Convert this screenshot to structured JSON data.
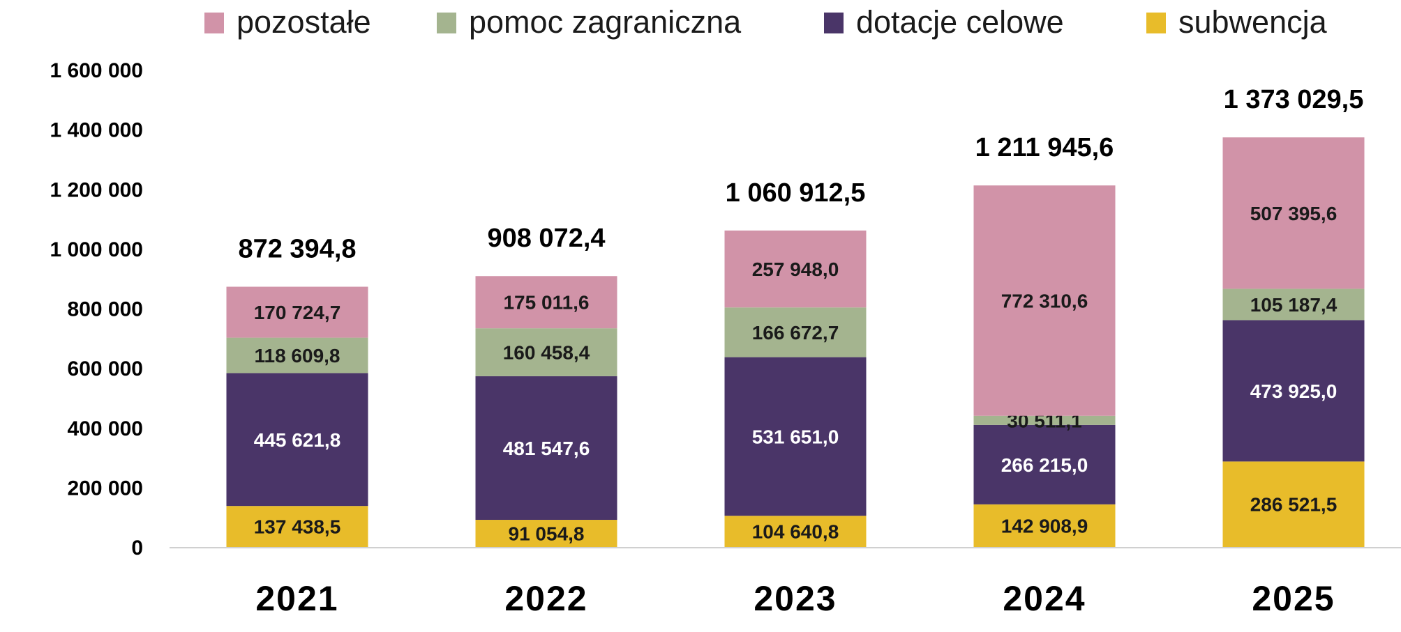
{
  "chart_data": {
    "type": "bar",
    "stacked": true,
    "title": "",
    "xlabel": "",
    "ylabel": "",
    "ylim": [
      0,
      1600000
    ],
    "yticks": [
      {
        "value": 0,
        "label": "0"
      },
      {
        "value": 200000,
        "label": "200  000"
      },
      {
        "value": 400000,
        "label": "400  000"
      },
      {
        "value": 600000,
        "label": "600  000"
      },
      {
        "value": 800000,
        "label": "800  000"
      },
      {
        "value": 1000000,
        "label": "1  000  000"
      },
      {
        "value": 1200000,
        "label": "1  200  000"
      },
      {
        "value": 1400000,
        "label": "1  400  000"
      },
      {
        "value": 1600000,
        "label": "1  600  000"
      }
    ],
    "grid": false,
    "legend_position": "top",
    "categories": [
      "2021",
      "2022",
      "2023",
      "2024",
      "2025"
    ],
    "totals": [
      {
        "value": 872394.8,
        "label": "872 394,8"
      },
      {
        "value": 908072.4,
        "label": "908 072,4"
      },
      {
        "value": 1060912.5,
        "label": "1 060 912,5"
      },
      {
        "value": 1211945.6,
        "label": "1 211 945,6"
      },
      {
        "value": 1373029.5,
        "label": "1 373 029,5"
      }
    ],
    "legend_order": [
      "pozostałe",
      "pomoc zagraniczna",
      "dotacje celowe",
      "subwencja"
    ],
    "series": [
      {
        "name": "subwencja",
        "color": "#E8BC2A",
        "label_color": "#1a1a1a",
        "values": [
          137438.5,
          91054.8,
          104640.8,
          142908.9,
          286521.5
        ],
        "labels": [
          "137 438,5",
          "91 054,8",
          "104 640,8",
          "142 908,9",
          "286 521,5"
        ]
      },
      {
        "name": "dotacje celowe",
        "color": "#4A3568",
        "label_color": "#ffffff",
        "values": [
          445621.8,
          481547.6,
          531651.0,
          266215.0,
          473925.0
        ],
        "labels": [
          "445 621,8",
          "481 547,6",
          "531 651,0",
          "266 215,0",
          "473 925,0"
        ]
      },
      {
        "name": "pomoc zagraniczna",
        "color": "#A4B48F",
        "label_color": "#1a1a1a",
        "values": [
          118609.8,
          160458.4,
          166672.7,
          30511.1,
          105187.4
        ],
        "labels": [
          "118 609,8",
          "160 458,4",
          "166 672,7",
          "30 511,1",
          "105 187,4"
        ]
      },
      {
        "name": "pozostałe",
        "color": "#D193A8",
        "label_color": "#1a1a1a",
        "values": [
          170724.7,
          175011.6,
          257948.0,
          772310.6,
          507395.6
        ],
        "labels": [
          "170 724,7",
          "175 011,6",
          "257 948,0",
          "772 310,6",
          "507 395,6"
        ]
      }
    ]
  }
}
